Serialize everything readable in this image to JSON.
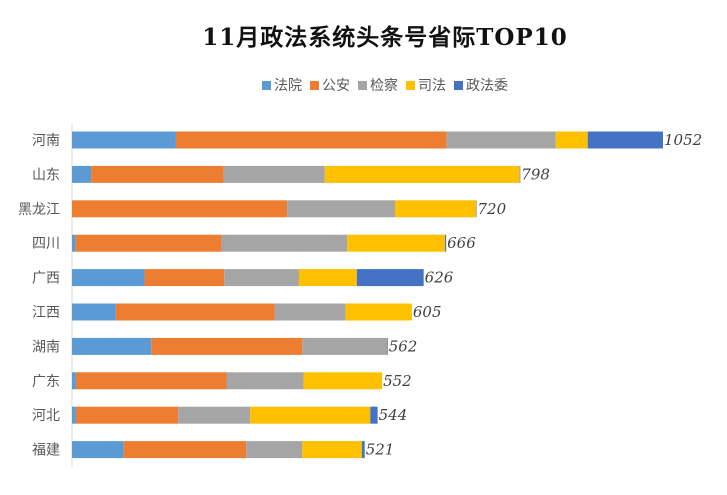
{
  "chart_data": {
    "type": "bar",
    "orientation": "horizontal",
    "stacked": true,
    "title": "11月政法系统头条号省际TOP10",
    "xlabel": "",
    "ylabel": "",
    "xlim": [
      0,
      1052
    ],
    "grid": false,
    "legend_position": "top",
    "categories": [
      "河南",
      "山东",
      "黑龙江",
      "四川",
      "广西",
      "江西",
      "湖南",
      "广东",
      "河北",
      "福建"
    ],
    "totals": [
      1052,
      798,
      720,
      666,
      626,
      605,
      562,
      552,
      544,
      521
    ],
    "series": [
      {
        "name": "法院",
        "color": "#5B9BD5",
        "values": [
          185,
          34,
          0,
          6,
          129,
          78,
          141,
          7,
          7,
          92
        ]
      },
      {
        "name": "公安",
        "color": "#ED7D31",
        "values": [
          482,
          236,
          383,
          260,
          142,
          283,
          269,
          268,
          182,
          218
        ]
      },
      {
        "name": "检察",
        "color": "#A5A5A5",
        "values": [
          194,
          180,
          192,
          224,
          133,
          126,
          149,
          137,
          128,
          100
        ]
      },
      {
        "name": "司法",
        "color": "#FFC000",
        "values": [
          57,
          347,
          144,
          174,
          103,
          118,
          1,
          140,
          214,
          106
        ]
      },
      {
        "name": "政法委",
        "color": "#4472C4",
        "values": [
          134,
          1,
          1,
          2,
          119,
          0,
          2,
          0,
          13,
          5
        ]
      }
    ]
  }
}
